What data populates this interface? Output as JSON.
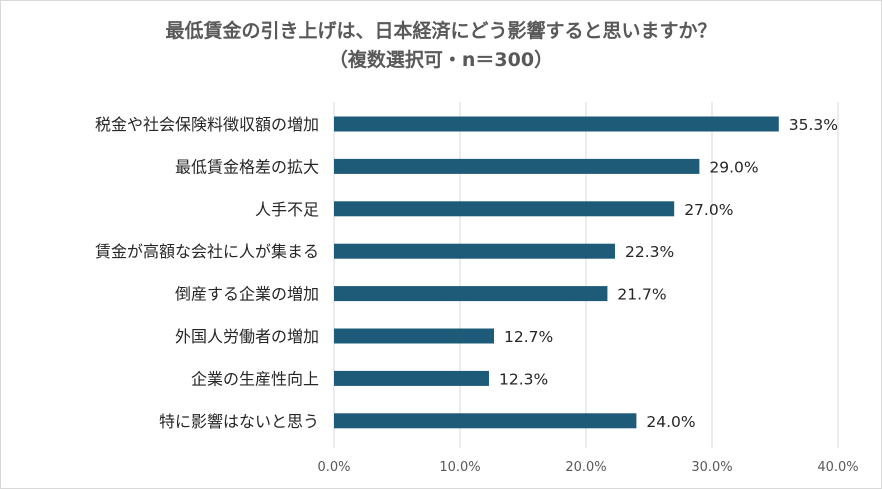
{
  "chart_data": {
    "type": "bar",
    "orientation": "horizontal",
    "title": "最低賃金の引き上げは、日本経済にどう影響すると思いますか？",
    "subtitle": "（複数選択可・n＝300）",
    "categories": [
      "税金や社会保険料徴収額の増加",
      "最低賃金格差の拡大",
      "人手不足",
      "賃金が高額な会社に人が集まる",
      "倒産する企業の増加",
      "外国人労働者の増加",
      "企業の生産性向上",
      "特に影響はないと思う"
    ],
    "values": [
      35.3,
      29.0,
      27.0,
      22.3,
      21.7,
      12.7,
      12.3,
      24.0
    ],
    "value_labels": [
      "35.3%",
      "29.0%",
      "27.0%",
      "22.3%",
      "21.7%",
      "12.7%",
      "12.3%",
      "24.0%"
    ],
    "xlim": [
      0,
      40
    ],
    "xticks": [
      "0.0%",
      "10.0%",
      "20.0%",
      "30.0%",
      "40.0%"
    ],
    "grid": "vertical",
    "bar_color": "#1d5b79",
    "grid_color": "#d9d9d9"
  }
}
